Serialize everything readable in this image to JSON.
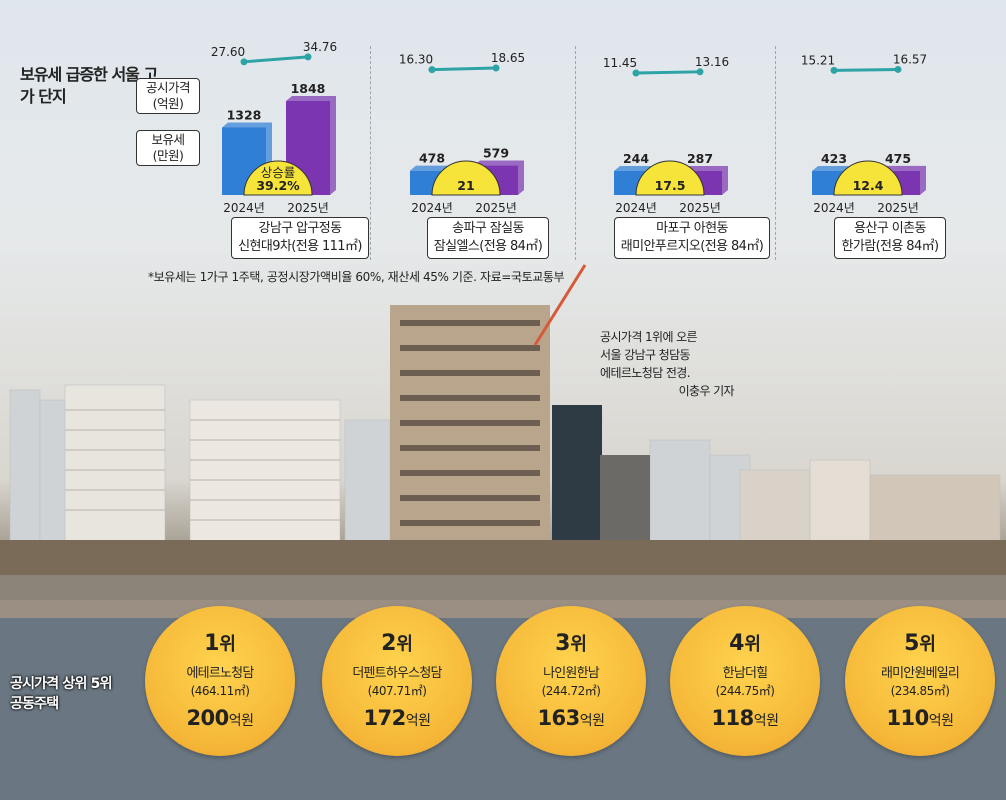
{
  "chart_data": {
    "type": "bar",
    "title": "보유세 급증한 서울 고가 단지",
    "legend": {
      "line": "공시가격 (억원)",
      "bar": "보유세 (만원)"
    },
    "categories": [
      "2024년",
      "2025년"
    ],
    "groups": [
      {
        "label_line1": "강남구 압구정동",
        "label_line2": "신현대9차(전용 111㎡)",
        "price": [
          27.6,
          34.76
        ],
        "price_labels": [
          "27.60",
          "34.76"
        ],
        "tax": [
          1328,
          1848
        ],
        "increase_line1": "상승률",
        "increase_line2": "39.2%"
      },
      {
        "label_line1": "송파구 잠실동",
        "label_line2": "잠실엘스(전용 84㎡)",
        "price": [
          16.3,
          18.65
        ],
        "price_labels": [
          "16.30",
          "18.65"
        ],
        "tax": [
          478,
          579
        ],
        "increase_line1": "",
        "increase_line2": "21"
      },
      {
        "label_line1": "마포구 아현동",
        "label_line2": "래미안푸르지오(전용 84㎡)",
        "price": [
          11.45,
          13.16
        ],
        "price_labels": [
          "11.45",
          "13.16"
        ],
        "tax": [
          244,
          287
        ],
        "increase_line1": "",
        "increase_line2": "17.5"
      },
      {
        "label_line1": "용산구 이촌동",
        "label_line2": "한가람(전용 84㎡)",
        "price": [
          15.21,
          16.57
        ],
        "price_labels": [
          "15.21",
          "16.57"
        ],
        "tax": [
          423,
          475
        ],
        "increase_line1": "",
        "increase_line2": "12.4"
      }
    ]
  },
  "footnote": "*보유세는 1가구 1주택, 공정시장가액비율 60%, 재산세 45% 기준. 자료=국토교통부",
  "photo_caption": {
    "line1": "공시가격 1위에 오른",
    "line2": "서울 강남구 청담동",
    "line3": "에테르노청담 전경.",
    "credit": "이충우 기자"
  },
  "ranking": {
    "title_line1": "공시가격 상위 5위",
    "title_line2": "공동주택",
    "rank_suffix": "위",
    "price_unit": "억원",
    "items": [
      {
        "rank": "1",
        "name": "에테르노청담",
        "area": "(464.11㎡)",
        "price": "200"
      },
      {
        "rank": "2",
        "name": "더펜트하우스청담",
        "area": "(407.71㎡)",
        "price": "172"
      },
      {
        "rank": "3",
        "name": "나인원한남",
        "area": "(244.72㎡)",
        "price": "163"
      },
      {
        "rank": "4",
        "name": "한남더힐",
        "area": "(244.75㎡)",
        "price": "118"
      },
      {
        "rank": "5",
        "name": "래미안원베일리",
        "area": "(234.85㎡)",
        "price": "110"
      }
    ]
  },
  "colors": {
    "bar_2024": "#2f7fd6",
    "bar_2025": "#7b35b0",
    "line": "#2ea3a6",
    "highlight": "#f6e43a",
    "circle": "#f6b93a"
  }
}
